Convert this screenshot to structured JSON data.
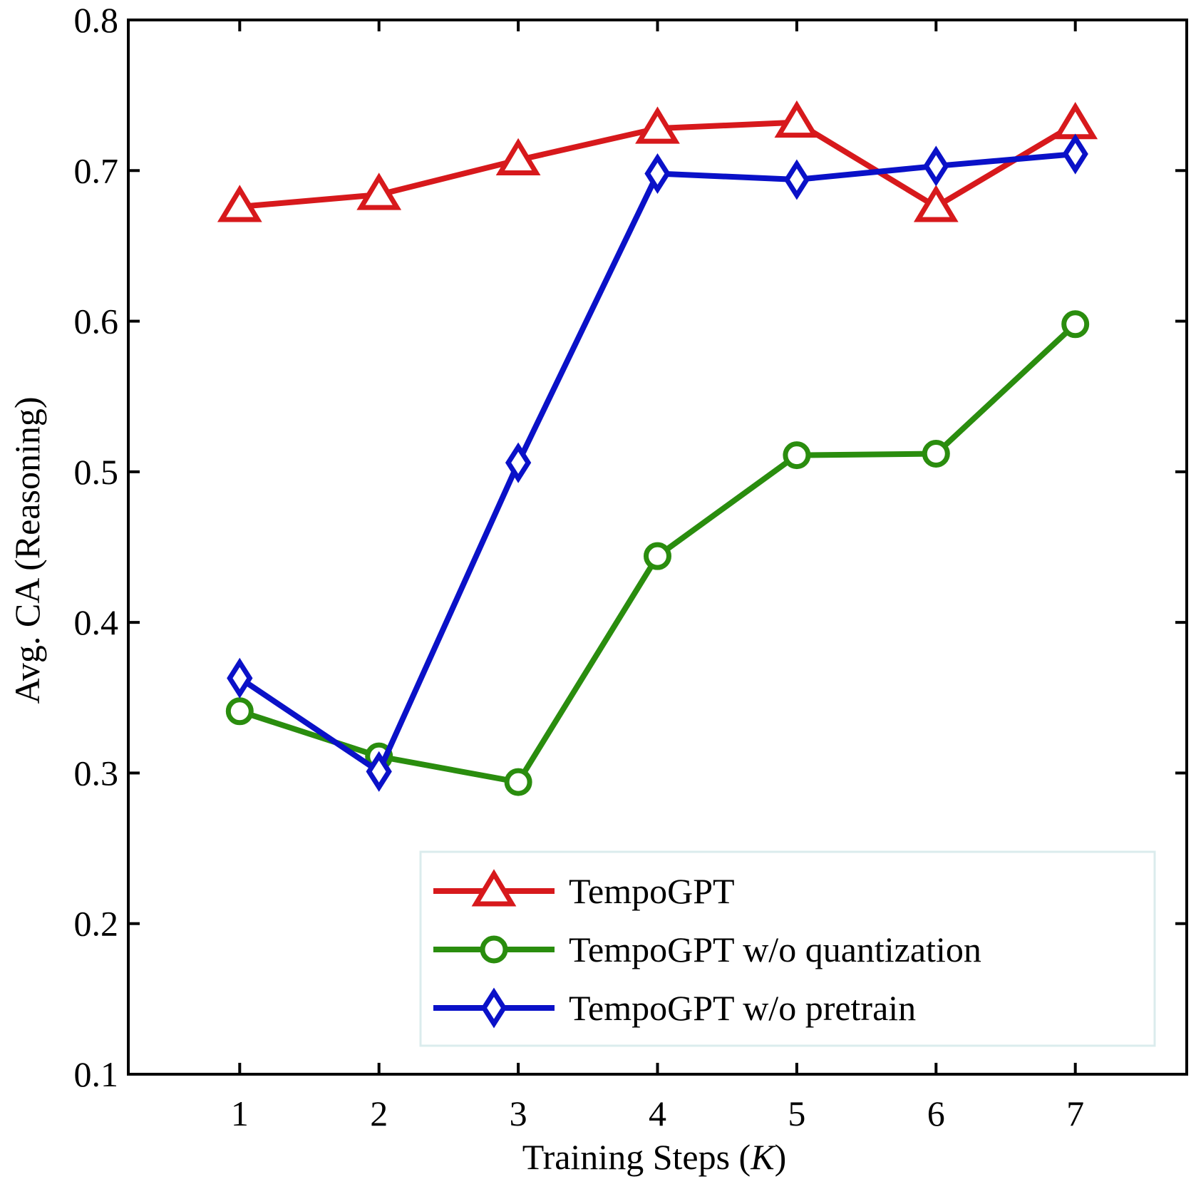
{
  "chart_data": {
    "type": "line",
    "xlabel": "Training Steps",
    "xlabel_unit": "K",
    "ylabel": "Avg. CA (Reasoning)",
    "x": [
      1,
      2,
      3,
      4,
      5,
      6,
      7
    ],
    "xlim": [
      0.2,
      7.8
    ],
    "ylim": [
      0.1,
      0.8
    ],
    "xticks": [
      "1",
      "2",
      "3",
      "4",
      "5",
      "6",
      "7"
    ],
    "yticks": [
      "0.1",
      "0.2",
      "0.3",
      "0.4",
      "0.5",
      "0.6",
      "0.7",
      "0.8"
    ],
    "grid": false,
    "legend_position": "bottom-right",
    "series": [
      {
        "name": "TempoGPT",
        "color": "#d7191c",
        "marker": "triangle",
        "values": [
          0.676,
          0.684,
          0.707,
          0.728,
          0.732,
          0.676,
          0.731
        ]
      },
      {
        "name": "TempoGPT w/o quantization",
        "color": "#2a8d0e",
        "marker": "circle",
        "values": [
          0.341,
          0.311,
          0.294,
          0.444,
          0.511,
          0.512,
          0.598
        ]
      },
      {
        "name": "TempoGPT w/o pretrain",
        "color": "#0a11c8",
        "marker": "diamond",
        "values": [
          0.363,
          0.301,
          0.506,
          0.698,
          0.694,
          0.703,
          0.711
        ]
      }
    ]
  }
}
